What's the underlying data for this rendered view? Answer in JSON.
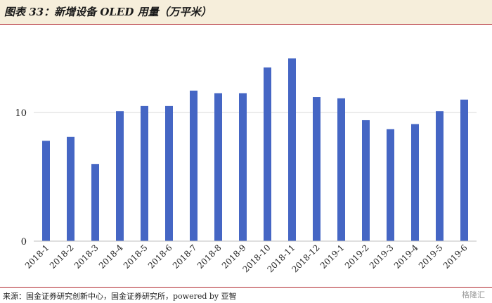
{
  "title": "图表 33：新增设备 OLED 用量（万平米）",
  "source": "来源：国金证券研究创新中心，国金证券研究所，powered by 亚智",
  "watermark": "格隆汇",
  "colors": {
    "bar": "#4566c4",
    "accent": "#b0282d",
    "title_bg": "#f6eedb",
    "grid": "#d9d9d9"
  },
  "chart_data": {
    "type": "bar",
    "title": "新增设备 OLED 用量（万平米）",
    "xlabel": "",
    "ylabel": "",
    "ylim": [
      0,
      15
    ],
    "yticks": [
      0,
      10
    ],
    "grid": true,
    "categories": [
      "2018-1",
      "2018-2",
      "2018-3",
      "2018-4",
      "2018-5",
      "2018-6",
      "2018-7",
      "2018-8",
      "2018-9",
      "2018-10",
      "2018-11",
      "2018-12",
      "2019-1",
      "2019-2",
      "2019-3",
      "2019-4",
      "2019-5",
      "2019-6"
    ],
    "values": [
      7.8,
      8.1,
      6.0,
      10.1,
      10.5,
      10.5,
      11.7,
      11.5,
      11.5,
      13.5,
      14.2,
      11.2,
      11.1,
      9.4,
      8.7,
      9.1,
      10.1,
      11.0
    ]
  }
}
